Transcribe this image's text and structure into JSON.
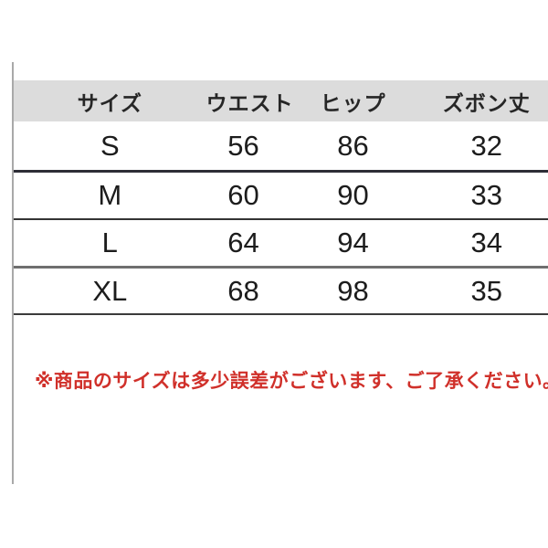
{
  "table": {
    "headers": {
      "size": "サイズ",
      "waist": "ウエスト",
      "hip": "ヒップ",
      "length": "ズボン丈"
    },
    "rows": [
      {
        "size": "S",
        "waist": "56",
        "hip": "86",
        "length": "32"
      },
      {
        "size": "M",
        "waist": "60",
        "hip": "90",
        "length": "33"
      },
      {
        "size": "L",
        "waist": "64",
        "hip": "94",
        "length": "34"
      },
      {
        "size": "XL",
        "waist": "68",
        "hip": "98",
        "length": "35"
      }
    ]
  },
  "note": "※商品のサイズは多少誤差がございます、ご了承ください。",
  "colors": {
    "header_bg": "#dcdcdc",
    "note_red": "#d0302a",
    "row_border_dark": "#2d2d36",
    "row_border_gray": "#6f6f6f",
    "left_rule_gray": "#a9a9a9"
  }
}
